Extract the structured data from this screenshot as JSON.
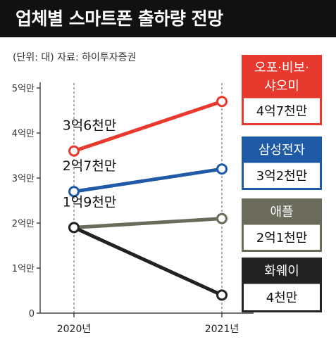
{
  "title": "업체별 스마트폰 출하량 전망",
  "unit_note": "(단위: 대) 자료: 하이투자증권",
  "colors": {
    "oppo": "#e8392e",
    "samsung": "#1f5aa6",
    "apple": "#6b6b5c",
    "huawei": "#222222",
    "background": "#ffffff",
    "title_bar": "#111111"
  },
  "chart_data": {
    "type": "line",
    "title": "업체별 스마트폰 출하량 전망",
    "x": [
      "2020년",
      "2021년"
    ],
    "ylabel": "",
    "ylim": [
      0,
      5
    ],
    "yticks": [
      0,
      1,
      2,
      3,
      4,
      5
    ],
    "ytick_labels": [
      "0",
      "1억만",
      "2억만",
      "3억만",
      "4억만",
      "5억만"
    ],
    "grid": false,
    "series": [
      {
        "key": "oppo",
        "name": "오포·비보·샤오미",
        "name_lines": [
          "오포·비보·",
          "샤오미"
        ],
        "values": [
          3.6,
          4.7
        ],
        "label_start": "3억6천만",
        "label_end": "4억7천만",
        "color": "#e8392e"
      },
      {
        "key": "samsung",
        "name": "삼성전자",
        "name_lines": [
          "삼성전자"
        ],
        "values": [
          2.7,
          3.2
        ],
        "label_start": "2억7천만",
        "label_end": "3억2천만",
        "color": "#1f5aa6"
      },
      {
        "key": "apple",
        "name": "애플",
        "name_lines": [
          "애플"
        ],
        "values": [
          1.9,
          2.1
        ],
        "label_start": "1억9천만",
        "label_end": "2억1천만",
        "color": "#6b6b5c"
      },
      {
        "key": "huawei",
        "name": "화웨이",
        "name_lines": [
          "화웨이"
        ],
        "values": [
          1.9,
          0.4
        ],
        "label_start": "",
        "label_end": "4천만",
        "color": "#222222"
      }
    ]
  }
}
